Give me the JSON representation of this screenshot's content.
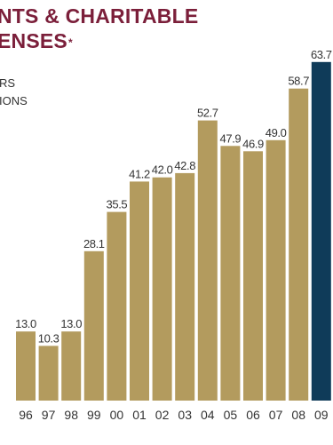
{
  "title": {
    "line1": "NTS & CHARITABLE",
    "line2": "ENSES",
    "marker": "*"
  },
  "subtitle": {
    "line1": "RS",
    "line2": "IONS"
  },
  "colors": {
    "bar": "#b39b5e",
    "highlight_bar": "#0f3b59",
    "title": "#7b1f3a"
  },
  "chart_data": {
    "type": "bar",
    "categories": [
      "96",
      "97",
      "98",
      "99",
      "00",
      "01",
      "02",
      "03",
      "04",
      "05",
      "06",
      "07",
      "08",
      "09"
    ],
    "values": [
      13.0,
      10.3,
      13.0,
      28.1,
      35.5,
      41.2,
      42.0,
      42.8,
      52.7,
      47.9,
      46.9,
      49.0,
      58.7,
      63.7
    ],
    "value_labels": [
      "13.0",
      "10.3",
      "13.0",
      "28.1",
      "35.5",
      "41.2",
      "42.0",
      "42.8",
      "52.7",
      "47.9",
      "46.9",
      "49.0",
      "58.7",
      "63.7"
    ],
    "highlight_index": 13,
    "ylim": [
      0,
      64.5
    ],
    "grid": false
  }
}
